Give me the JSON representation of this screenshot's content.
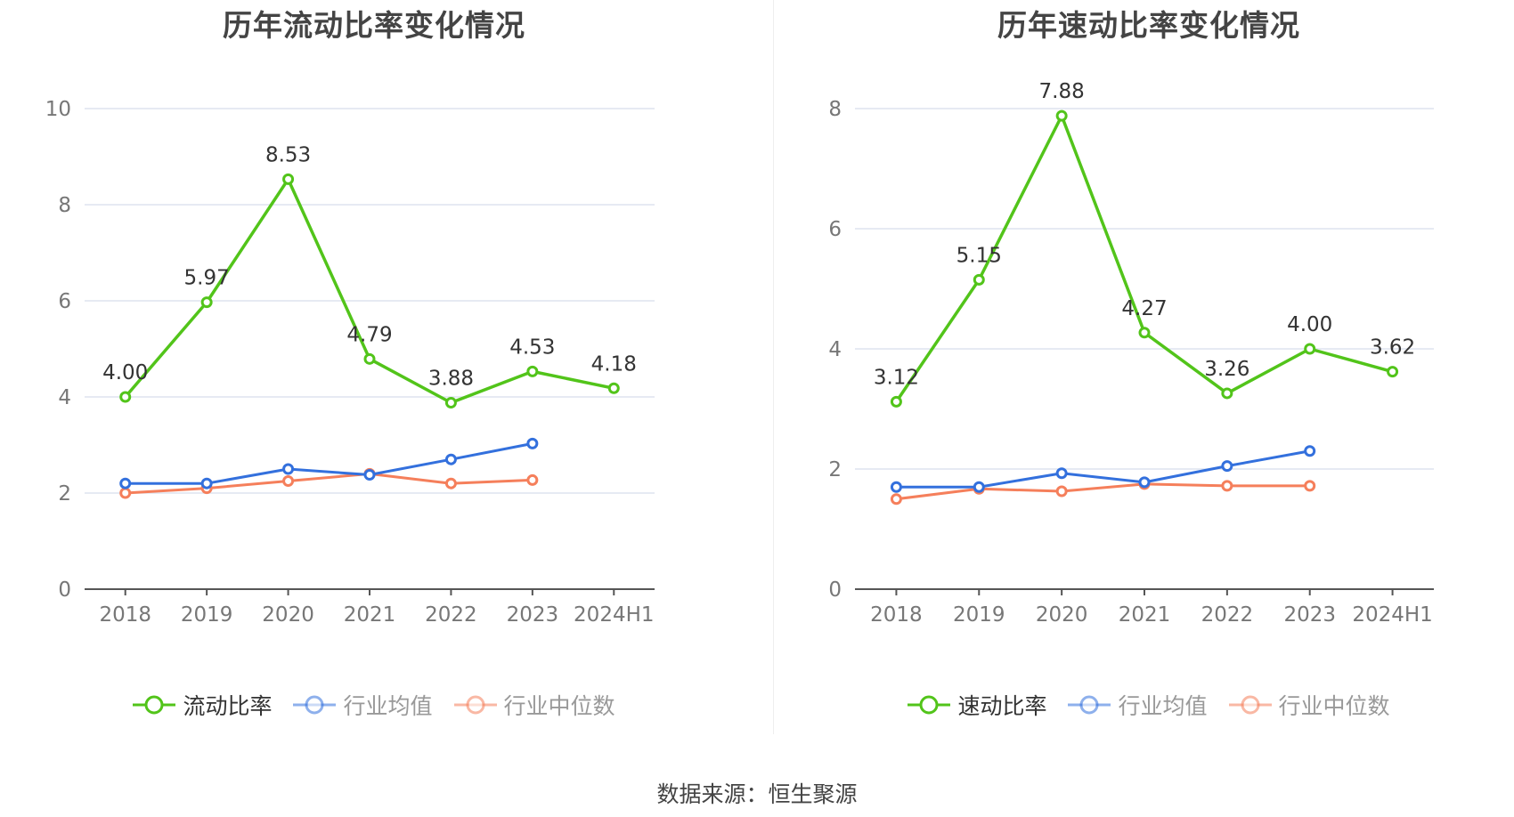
{
  "colors": {
    "main": "#52c41a",
    "average": "#3370dd",
    "median": "#f57f5b",
    "grid": "#dde3ef",
    "axis": "#555555"
  },
  "source": "数据来源：恒生聚源",
  "chart_data": [
    {
      "type": "line",
      "title": "历年流动比率变化情况",
      "categories": [
        "2018",
        "2019",
        "2020",
        "2021",
        "2022",
        "2023",
        "2024H1"
      ],
      "ylim": [
        0,
        10
      ],
      "yticks": [
        "0",
        "2",
        "4",
        "6",
        "8",
        "10"
      ],
      "grid": true,
      "legend_position": "bottom",
      "series": [
        {
          "name": "流动比率",
          "values": [
            4.0,
            5.97,
            8.53,
            4.79,
            3.88,
            4.53,
            4.18
          ],
          "labels": [
            "4.00",
            "5.97",
            "8.53",
            "4.79",
            "3.88",
            "4.53",
            "4.18"
          ]
        },
        {
          "name": "行业均值",
          "values": [
            2.2,
            2.2,
            2.5,
            2.38,
            2.7,
            3.03,
            null
          ]
        },
        {
          "name": "行业中位数",
          "values": [
            2.0,
            2.1,
            2.25,
            2.4,
            2.2,
            2.27,
            null
          ]
        }
      ]
    },
    {
      "type": "line",
      "title": "历年速动比率变化情况",
      "categories": [
        "2018",
        "2019",
        "2020",
        "2021",
        "2022",
        "2023",
        "2024H1"
      ],
      "ylim": [
        0,
        8
      ],
      "yticks": [
        "0",
        "2",
        "4",
        "6",
        "8"
      ],
      "grid": true,
      "legend_position": "bottom",
      "series": [
        {
          "name": "速动比率",
          "values": [
            3.12,
            5.15,
            7.88,
            4.27,
            3.26,
            4.0,
            3.62
          ],
          "labels": [
            "3.12",
            "5.15",
            "7.88",
            "4.27",
            "3.26",
            "4.00",
            "3.62"
          ]
        },
        {
          "name": "行业均值",
          "values": [
            1.7,
            1.7,
            1.93,
            1.78,
            2.05,
            2.3,
            null
          ]
        },
        {
          "name": "行业中位数",
          "values": [
            1.5,
            1.67,
            1.63,
            1.75,
            1.72,
            1.72,
            null
          ]
        }
      ]
    }
  ]
}
